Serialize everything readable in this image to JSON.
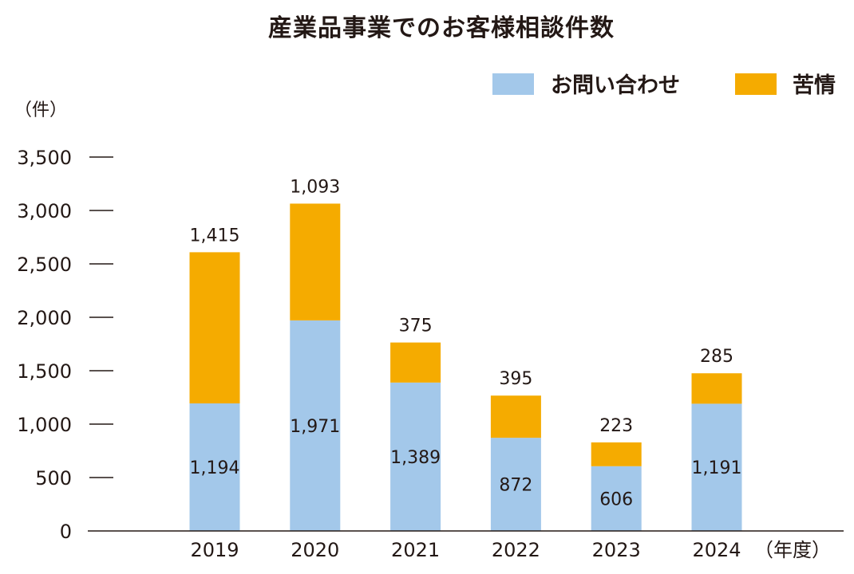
{
  "chart_data": {
    "type": "bar",
    "stacked": true,
    "title": "産業品事業でのお客様相談件数",
    "ylabel": "（件）",
    "xlabel": "（年度）",
    "categories": [
      "2019",
      "2020",
      "2021",
      "2022",
      "2023",
      "2024"
    ],
    "series": [
      {
        "name": "お問い合わせ",
        "color": "#a3c8ea",
        "values": [
          1194,
          1971,
          1389,
          872,
          606,
          1191
        ]
      },
      {
        "name": "苦情",
        "color": "#f5ab00",
        "values": [
          1415,
          1093,
          375,
          395,
          223,
          285
        ]
      }
    ],
    "yticks": [
      "0",
      "500",
      "1,000",
      "1,500",
      "2,000",
      "2,500",
      "3,000",
      "3,500"
    ],
    "ylim": [
      0,
      3500
    ],
    "grid": false,
    "legend": "top-right"
  }
}
